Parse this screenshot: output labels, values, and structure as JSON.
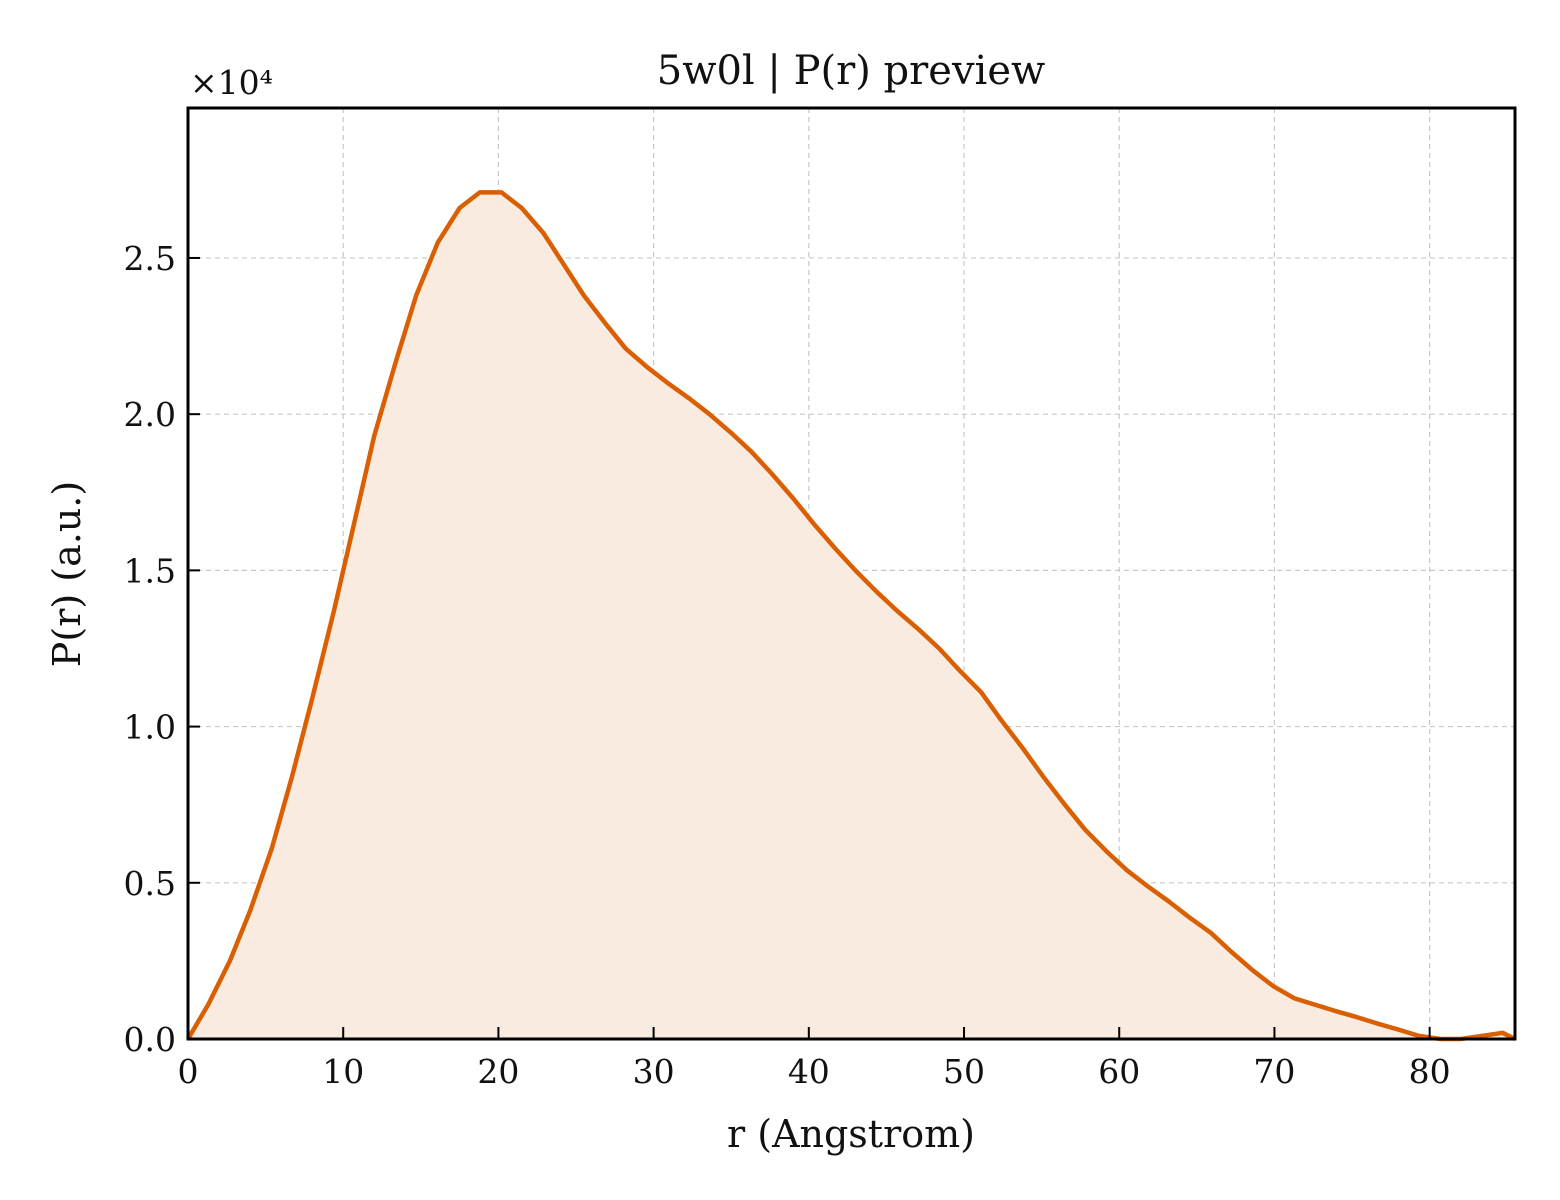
{
  "chart_data": {
    "type": "area",
    "title": "5w0l | P(r) preview",
    "xlabel": "r (Angstrom)",
    "ylabel": "P(r) (a.u.)",
    "y_offset_label": "×10⁴",
    "xlim": [
      0,
      85.5
    ],
    "ylim": [
      0,
      2.98
    ],
    "x_ticks": [
      0,
      10,
      20,
      30,
      40,
      50,
      60,
      70,
      80
    ],
    "x_tick_labels": [
      "0",
      "10",
      "20",
      "30",
      "40",
      "50",
      "60",
      "70",
      "80"
    ],
    "y_ticks": [
      0,
      0.5,
      1.0,
      1.5,
      2.0,
      2.5
    ],
    "y_tick_labels": [
      "0.0",
      "0.5",
      "1.0",
      "1.5",
      "2.0",
      "2.5"
    ],
    "grid": true,
    "line_color": "#d95f02",
    "fill_color": "#f9ebe0",
    "series": [
      {
        "x": [
          0,
          1.3,
          2.7,
          4.0,
          5.4,
          6.7,
          8.0,
          9.4,
          10.7,
          12.0,
          13.4,
          14.7,
          16.1,
          17.5,
          18.8,
          20.2,
          21.5,
          22.9,
          24.2,
          25.5,
          26.9,
          28.2,
          29.6,
          30.9,
          32.3,
          33.6,
          35.0,
          36.3,
          37.6,
          39.0,
          40.3,
          41.7,
          43.0,
          44.4,
          45.7,
          47.1,
          48.4,
          49.7,
          51.1,
          52.4,
          53.8,
          55.1,
          56.5,
          57.8,
          59.2,
          60.5,
          61.8,
          63.2,
          64.5,
          65.9,
          67.2,
          68.6,
          69.9,
          71.3,
          72.6,
          73.9,
          75.3,
          76.6,
          78.0,
          79.3,
          80.7,
          82.0,
          83.4,
          84.7,
          85.5
        ],
        "y": [
          0.0,
          0.11,
          0.25,
          0.41,
          0.61,
          0.84,
          1.09,
          1.37,
          1.65,
          1.93,
          2.17,
          2.38,
          2.55,
          2.66,
          2.71,
          2.71,
          2.66,
          2.58,
          2.48,
          2.38,
          2.29,
          2.21,
          2.15,
          2.1,
          2.05,
          2.0,
          1.94,
          1.88,
          1.81,
          1.73,
          1.65,
          1.57,
          1.5,
          1.43,
          1.37,
          1.31,
          1.25,
          1.18,
          1.11,
          1.02,
          0.93,
          0.84,
          0.75,
          0.67,
          0.6,
          0.54,
          0.49,
          0.44,
          0.39,
          0.34,
          0.28,
          0.22,
          0.17,
          0.13,
          0.11,
          0.09,
          0.07,
          0.05,
          0.03,
          0.01,
          0.0,
          0.0,
          0.01,
          0.02,
          0.0
        ]
      }
    ]
  }
}
